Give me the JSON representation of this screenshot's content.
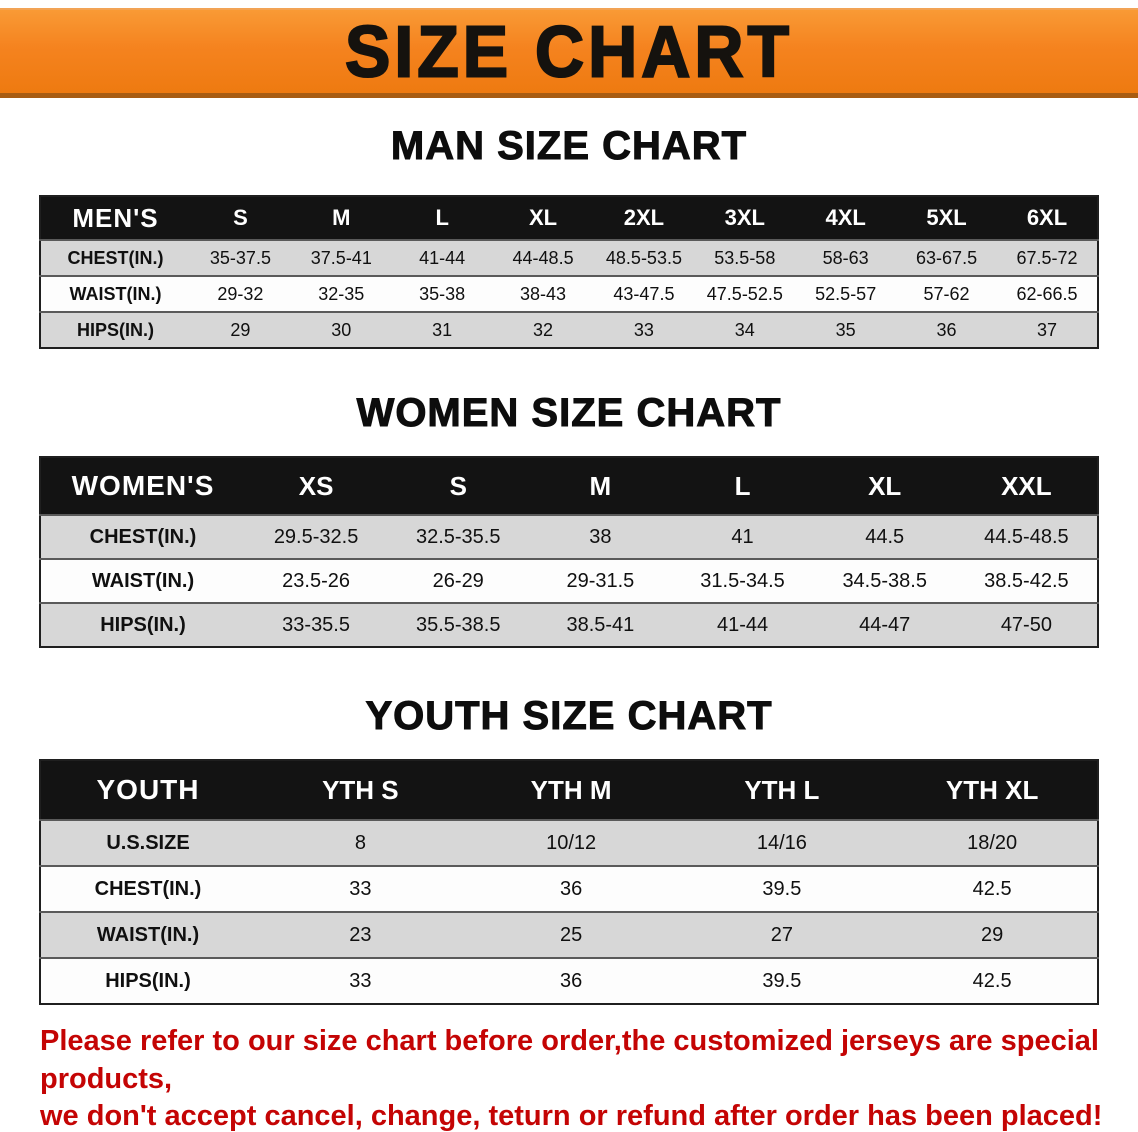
{
  "banner": {
    "title": "SIZE CHART",
    "bg_color": "#f5831f",
    "text_color": "#15120e"
  },
  "tables": [
    {
      "heading": "MAN SIZE CHART",
      "header": [
        "MEN'S",
        "S",
        "M",
        "L",
        "XL",
        "2XL",
        "3XL",
        "4XL",
        "5XL",
        "6XL"
      ],
      "rows": [
        [
          "CHEST(IN.)",
          "35-37.5",
          "37.5-41",
          "41-44",
          "44-48.5",
          "48.5-53.5",
          "53.5-58",
          "58-63",
          "63-67.5",
          "67.5-72"
        ],
        [
          "WAIST(IN.)",
          "29-32",
          "32-35",
          "35-38",
          "38-43",
          "43-47.5",
          "47.5-52.5",
          "52.5-57",
          "57-62",
          "62-66.5"
        ],
        [
          "HIPS(IN.)",
          "29",
          "30",
          "31",
          "32",
          "33",
          "34",
          "35",
          "36",
          "37"
        ]
      ]
    },
    {
      "heading": "WOMEN SIZE CHART",
      "header": [
        "WOMEN'S",
        "XS",
        "S",
        "M",
        "L",
        "XL",
        "XXL"
      ],
      "rows": [
        [
          "CHEST(IN.)",
          "29.5-32.5",
          "32.5-35.5",
          "38",
          "41",
          "44.5",
          "44.5-48.5"
        ],
        [
          "WAIST(IN.)",
          "23.5-26",
          "26-29",
          "29-31.5",
          "31.5-34.5",
          "34.5-38.5",
          "38.5-42.5"
        ],
        [
          "HIPS(IN.)",
          "33-35.5",
          "35.5-38.5",
          "38.5-41",
          "41-44",
          "44-47",
          "47-50"
        ]
      ]
    },
    {
      "heading": "YOUTH SIZE CHART",
      "header": [
        "YOUTH",
        "YTH S",
        "YTH M",
        "YTH L",
        "YTH XL"
      ],
      "rows": [
        [
          "U.S.SIZE",
          "8",
          "10/12",
          "14/16",
          "18/20"
        ],
        [
          "CHEST(IN.)",
          "33",
          "36",
          "39.5",
          "42.5"
        ],
        [
          "WAIST(IN.)",
          "23",
          "25",
          "27",
          "29"
        ],
        [
          "HIPS(IN.)",
          "33",
          "36",
          "39.5",
          "42.5"
        ]
      ]
    }
  ],
  "disclaimer": {
    "line1": "Please refer to our size chart before order,the customized jerseys are special products,",
    "line2": "we don't accept cancel, change, teturn or refund after order has been placed!",
    "color": "#c40404"
  }
}
